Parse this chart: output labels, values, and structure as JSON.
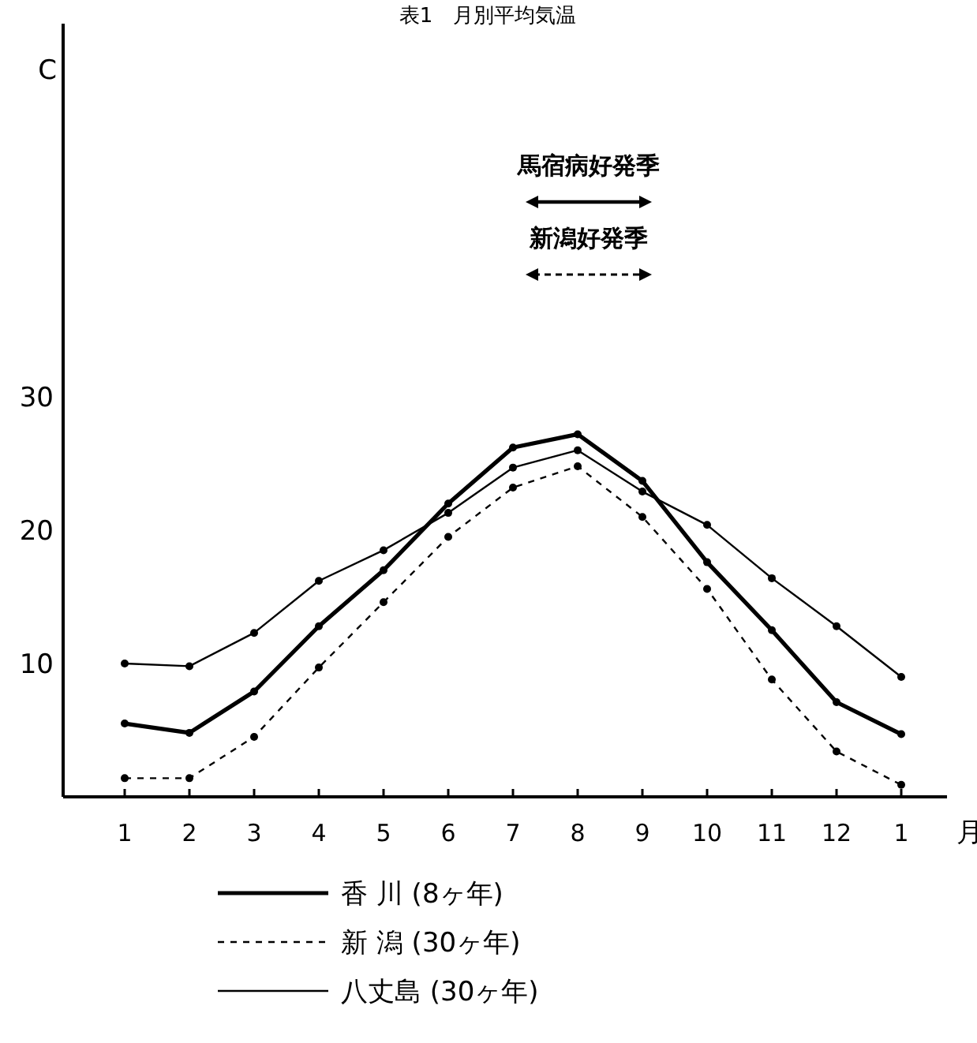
{
  "chart_data": {
    "type": "line",
    "title": "表1　月別平均気温",
    "xlabel": "月",
    "ylabel": "C",
    "categories": [
      "1",
      "2",
      "3",
      "4",
      "5",
      "6",
      "7",
      "8",
      "9",
      "10",
      "11",
      "12",
      "1"
    ],
    "series": [
      {
        "name": "香 川 (8ヶ年)",
        "color": "#000000",
        "line_style": "solid",
        "values": [
          5.5,
          4.8,
          7.9,
          12.8,
          17.0,
          22.0,
          26.2,
          27.2,
          23.7,
          17.6,
          12.5,
          7.1,
          4.7
        ]
      },
      {
        "name": "新 潟 (30ヶ年)",
        "color": "#000000",
        "line_style": "dashed",
        "values": [
          1.4,
          1.4,
          4.5,
          9.7,
          14.6,
          19.5,
          23.2,
          24.8,
          21.0,
          15.6,
          8.8,
          3.4,
          0.9
        ]
      },
      {
        "name": "八丈島 (30ヶ年)",
        "color": "#000000",
        "line_style": "solid",
        "values": [
          10.0,
          9.8,
          12.3,
          16.2,
          18.5,
          21.3,
          24.7,
          26.0,
          22.9,
          20.4,
          16.4,
          12.8,
          9.0
        ]
      }
    ],
    "annotations": [
      "馬宿病好発季",
      "新潟好発季"
    ],
    "ylim": [
      0,
      58
    ],
    "yticks": [
      10,
      20,
      30
    ],
    "marker": "circle",
    "legend": "bottom",
    "grid": false
  }
}
